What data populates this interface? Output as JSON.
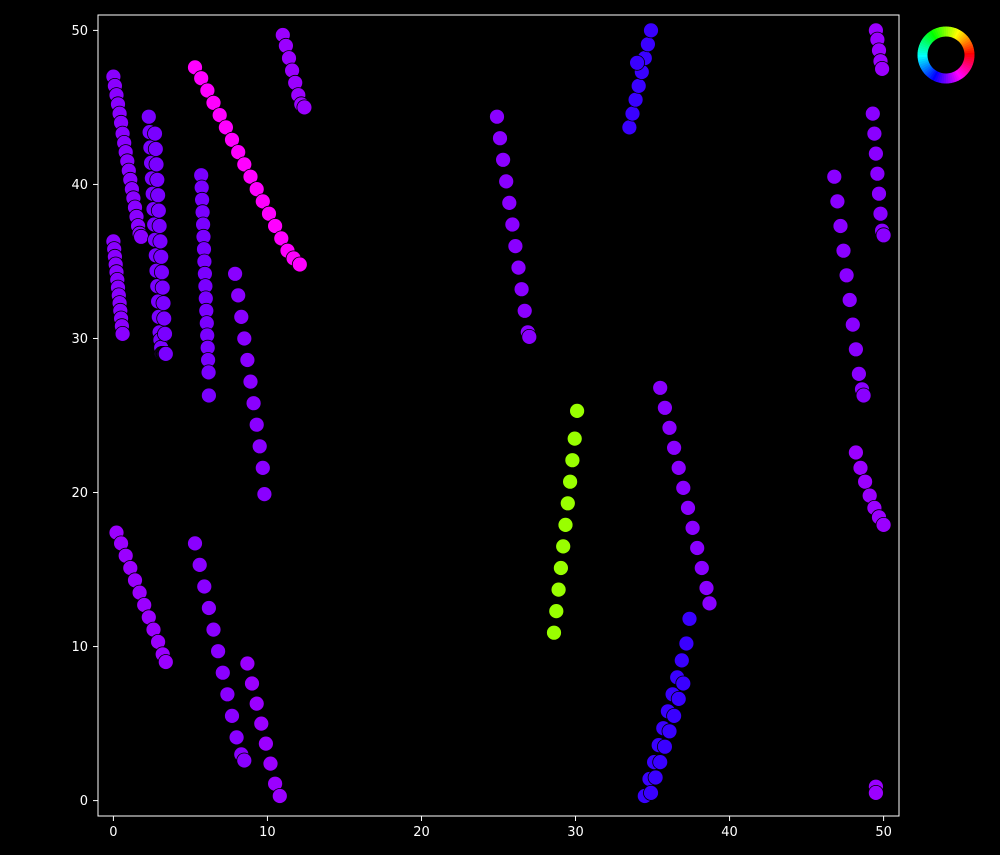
{
  "chart_data": {
    "type": "scatter",
    "title": "",
    "xlabel": "",
    "ylabel": "",
    "xlim": [
      -1,
      51
    ],
    "ylim": [
      -1,
      51
    ],
    "xticks": [
      0,
      10,
      20,
      30,
      40,
      50
    ],
    "yticks": [
      0,
      10,
      20,
      30,
      40,
      50
    ],
    "xtick_labels": [
      "0",
      "10",
      "20",
      "30",
      "40",
      "50"
    ],
    "ytick_labels": [
      "0",
      "10",
      "20",
      "30",
      "40",
      "50"
    ],
    "background": "#000000",
    "axes_color": "#ffffff",
    "grid": false,
    "legend": "none",
    "colorwheel_legend": "top-right",
    "marker_edge_color": "#000000",
    "series": [
      {
        "color": "#8a00ff",
        "x": [
          0.0,
          0.1,
          0.2,
          0.3,
          0.4,
          0.5,
          0.6,
          0.7,
          0.8,
          0.9,
          1.0,
          1.1,
          1.2,
          1.3,
          1.4,
          1.5,
          1.6,
          1.7,
          1.8
        ],
        "y": [
          47.0,
          46.4,
          45.8,
          45.2,
          44.6,
          44.0,
          43.3,
          42.7,
          42.1,
          41.5,
          40.9,
          40.3,
          39.7,
          39.1,
          38.5,
          37.9,
          37.3,
          36.8,
          36.6
        ]
      },
      {
        "color": "#8a00ff",
        "x": [
          0.0,
          0.05,
          0.1,
          0.15,
          0.2,
          0.25,
          0.3,
          0.35,
          0.4,
          0.45,
          0.5,
          0.55,
          0.6
        ],
        "y": [
          36.3,
          35.8,
          35.3,
          34.8,
          34.3,
          33.8,
          33.3,
          32.8,
          32.3,
          31.8,
          31.3,
          30.8,
          30.3
        ]
      },
      {
        "color": "#7a00ff",
        "x": [
          2.3,
          2.35,
          2.4,
          2.45,
          2.5,
          2.55,
          2.6,
          2.65,
          2.7,
          2.75,
          2.8,
          2.85,
          2.9,
          2.95,
          3.0,
          3.05,
          3.1,
          3.15,
          3.2,
          3.25,
          3.3,
          3.35,
          3.4
        ],
        "y": [
          44.4,
          43.4,
          42.4,
          41.4,
          40.4,
          39.4,
          38.4,
          37.4,
          36.4,
          35.4,
          34.4,
          33.4,
          32.4,
          31.4,
          30.4,
          29.9,
          29.4,
          29.0,
          29.0,
          29.0,
          29.0,
          29.0,
          29.0
        ]
      },
      {
        "color": "#7a00ff",
        "x": [
          2.7,
          2.75,
          2.8,
          2.85,
          2.9,
          2.95,
          3.0,
          3.05,
          3.1,
          3.15,
          3.2,
          3.25,
          3.3,
          3.35,
          3.4
        ],
        "y": [
          43.3,
          42.3,
          41.3,
          40.3,
          39.3,
          38.3,
          37.3,
          36.3,
          35.3,
          34.3,
          33.3,
          32.3,
          31.3,
          30.3,
          29.0
        ]
      },
      {
        "color": "#7a00ff",
        "x": [
          5.7,
          5.73,
          5.76,
          5.79,
          5.82,
          5.85,
          5.88,
          5.91,
          5.94,
          5.97,
          6.0,
          6.03,
          6.06,
          6.09,
          6.12,
          6.15,
          6.18,
          6.2
        ],
        "y": [
          40.6,
          39.8,
          39.0,
          38.2,
          37.4,
          36.6,
          35.8,
          35.0,
          34.2,
          33.4,
          32.6,
          31.8,
          31.0,
          30.2,
          29.4,
          28.6,
          27.8,
          26.3
        ]
      },
      {
        "color": "#ff00ff",
        "x": [
          5.3,
          5.7,
          6.1,
          6.5,
          6.9,
          7.3,
          7.7,
          8.1,
          8.5,
          8.9,
          9.3,
          9.7,
          10.1,
          10.5,
          10.9,
          11.3,
          11.7,
          12.1
        ],
        "y": [
          47.6,
          46.9,
          46.1,
          45.3,
          44.5,
          43.7,
          42.9,
          42.1,
          41.3,
          40.5,
          39.7,
          38.9,
          38.1,
          37.3,
          36.5,
          35.7,
          35.2,
          34.8
        ]
      },
      {
        "color": "#8a00ff",
        "x": [
          7.9,
          8.1,
          8.3,
          8.5,
          8.7,
          8.9,
          9.1,
          9.3,
          9.5,
          9.7,
          9.8
        ],
        "y": [
          34.2,
          32.8,
          31.4,
          30.0,
          28.6,
          27.2,
          25.8,
          24.4,
          23.0,
          21.6,
          19.9
        ]
      },
      {
        "color": "#9b00ff",
        "x": [
          11.0,
          11.2,
          11.4,
          11.6,
          11.8,
          12.0,
          12.2,
          12.4
        ],
        "y": [
          49.7,
          49.0,
          48.2,
          47.4,
          46.6,
          45.8,
          45.2,
          45.0
        ]
      },
      {
        "color": "#9b00ff",
        "x": [
          0.2,
          0.5,
          0.8,
          1.1,
          1.4,
          1.7,
          2.0,
          2.3,
          2.6,
          2.9,
          3.2,
          3.4
        ],
        "y": [
          17.4,
          16.7,
          15.9,
          15.1,
          14.3,
          13.5,
          12.7,
          11.9,
          11.1,
          10.3,
          9.5,
          9.0
        ]
      },
      {
        "color": "#8a00ff",
        "x": [
          5.3,
          5.6,
          5.9,
          6.2,
          6.5,
          6.8,
          7.1,
          7.4,
          7.7,
          8.0,
          8.3,
          8.5
        ],
        "y": [
          16.7,
          15.3,
          13.9,
          12.5,
          11.1,
          9.7,
          8.3,
          6.9,
          5.5,
          4.1,
          3.0,
          2.6
        ]
      },
      {
        "color": "#9b00ff",
        "x": [
          8.7,
          9.0,
          9.3,
          9.6,
          9.9,
          10.2,
          10.5,
          10.8
        ],
        "y": [
          8.9,
          7.6,
          6.3,
          5.0,
          3.7,
          2.4,
          1.1,
          0.3
        ]
      },
      {
        "color": "#8a00ff",
        "x": [
          24.9,
          25.1,
          25.3,
          25.5,
          25.7,
          25.9,
          26.1,
          26.3,
          26.5,
          26.7,
          26.9,
          27.0
        ],
        "y": [
          44.4,
          43.0,
          41.6,
          40.2,
          38.8,
          37.4,
          36.0,
          34.6,
          33.2,
          31.8,
          30.4,
          30.1
        ]
      },
      {
        "color": "#99ff00",
        "x": [
          28.6,
          28.75,
          28.9,
          29.05,
          29.2,
          29.35,
          29.5,
          29.65,
          29.8,
          29.95,
          30.1
        ],
        "y": [
          10.9,
          12.3,
          13.7,
          15.1,
          16.5,
          17.9,
          19.3,
          20.7,
          22.1,
          23.5,
          25.3
        ]
      },
      {
        "color": "#3a00ff",
        "x": [
          33.5,
          33.7,
          33.9,
          34.1,
          34.3,
          34.5,
          34.7,
          34.9
        ],
        "y": [
          43.7,
          44.6,
          45.5,
          46.4,
          47.3,
          48.2,
          49.1,
          50.0
        ]
      },
      {
        "color": "#3a00ff",
        "x": [
          34.0
        ],
        "y": [
          47.9
        ]
      },
      {
        "color": "#8a00ff",
        "x": [
          35.5,
          35.8,
          36.1,
          36.4,
          36.7,
          37.0,
          37.3,
          37.6,
          37.9,
          38.2,
          38.5,
          38.7
        ],
        "y": [
          26.8,
          25.5,
          24.2,
          22.9,
          21.6,
          20.3,
          19.0,
          17.7,
          16.4,
          15.1,
          13.8,
          12.8
        ]
      },
      {
        "color": "#3a00ff",
        "x": [
          34.5,
          34.8,
          35.1,
          35.4,
          35.7,
          36.0,
          36.3,
          36.6,
          36.9,
          37.2,
          37.4
        ],
        "y": [
          0.3,
          1.4,
          2.5,
          3.6,
          4.7,
          5.8,
          6.9,
          8.0,
          9.1,
          10.2,
          11.8
        ]
      },
      {
        "color": "#3a00ff",
        "x": [
          34.9,
          35.2,
          35.5,
          35.8,
          36.1,
          36.4,
          36.7,
          37.0
        ],
        "y": [
          0.5,
          1.5,
          2.5,
          3.5,
          4.5,
          5.5,
          6.6,
          7.6
        ]
      },
      {
        "color": "#8a00ff",
        "x": [
          46.8,
          47.0,
          47.2,
          47.4,
          47.6,
          47.8,
          48.0,
          48.2,
          48.4,
          48.6,
          48.7
        ],
        "y": [
          40.5,
          38.9,
          37.3,
          35.7,
          34.1,
          32.5,
          30.9,
          29.3,
          27.7,
          26.7,
          26.3
        ]
      },
      {
        "color": "#8a00ff",
        "x": [
          49.3,
          49.4,
          49.5,
          49.6,
          49.7,
          49.8,
          49.9,
          50.0
        ],
        "y": [
          44.6,
          43.3,
          42.0,
          40.7,
          39.4,
          38.1,
          37.0,
          36.7
        ]
      },
      {
        "color": "#9b00ff",
        "x": [
          49.5,
          49.6,
          49.7,
          49.8,
          49.9
        ],
        "y": [
          50.0,
          49.4,
          48.7,
          48.0,
          47.5
        ]
      },
      {
        "color": "#9b00ff",
        "x": [
          48.2,
          48.5,
          48.8,
          49.1,
          49.4,
          49.7,
          50.0
        ],
        "y": [
          22.6,
          21.6,
          20.7,
          19.8,
          19.0,
          18.4,
          17.9
        ]
      },
      {
        "color": "#9b00ff",
        "x": [
          49.5,
          49.5
        ],
        "y": [
          0.9,
          0.5
        ]
      }
    ]
  }
}
